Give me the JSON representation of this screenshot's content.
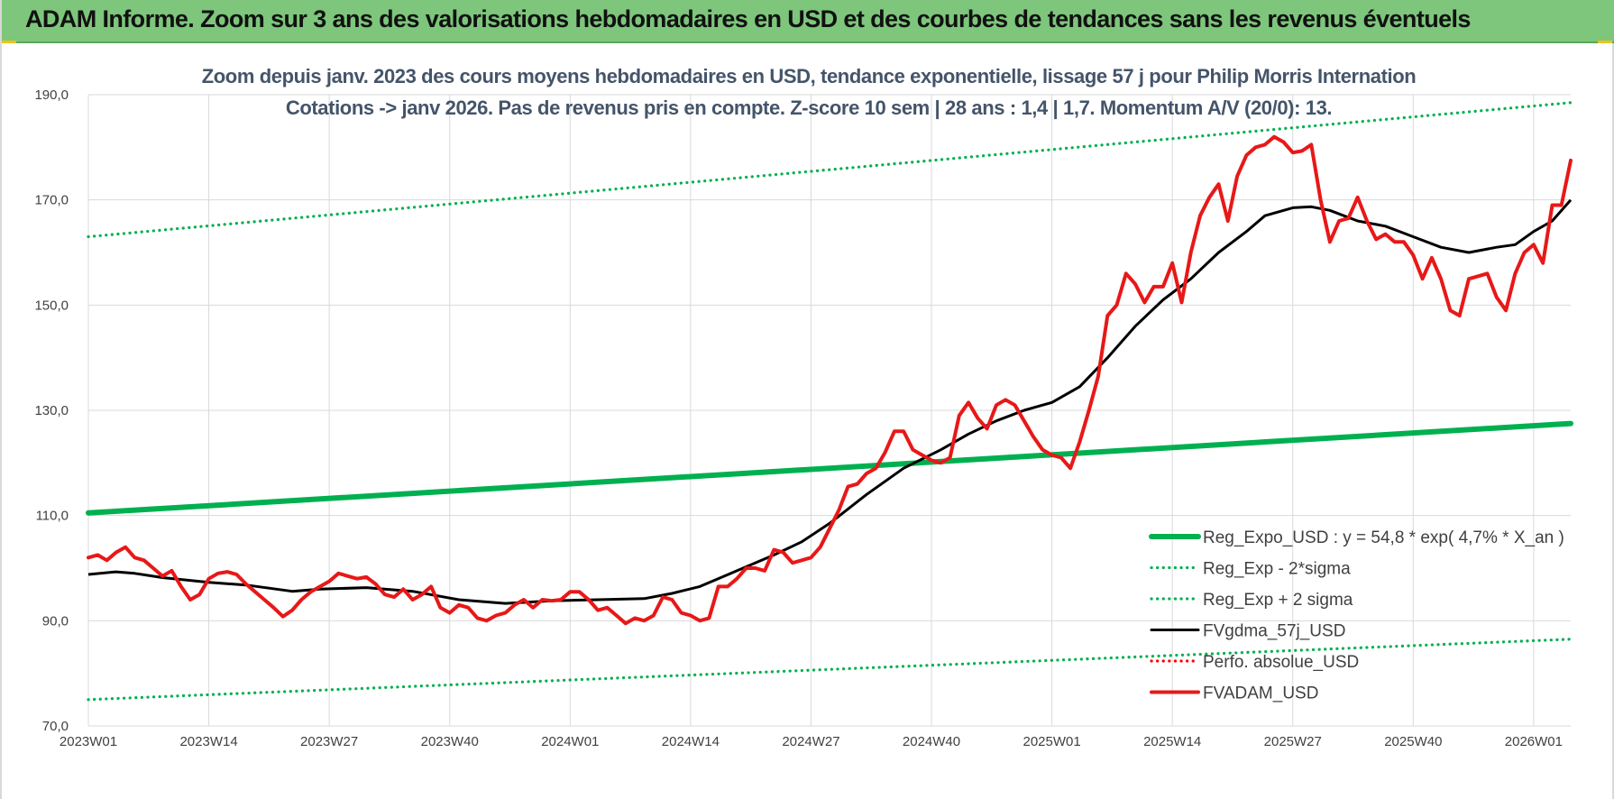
{
  "banner": {
    "title": "ADAM Informe. Zoom sur 3 ans des valorisations hebdomadaires en USD et des courbes de tendances sans les revenus éventuels"
  },
  "colors": {
    "banner_bg": "#7dc67b",
    "trend_green": "#00b050",
    "fvadam_red": "#e81818",
    "fvgdma_black": "#000000",
    "perf_red": "#ff0000",
    "subtitle": "#44546a",
    "grid": "#d9d9d9"
  },
  "chart_data": {
    "type": "line",
    "title_line1": "Zoom depuis janv. 2023 des cours moyens hebdomadaires en USD, tendance exponentielle, lissage 57 j pour Philip Morris Internation",
    "title_line2": "Cotations -> janv 2026. Pas de revenus pris en compte. Z-score 10 sem | 28 ans : 1,4 | 1,7. Momentum A/V (20/0): 13.",
    "ylim": [
      70,
      190
    ],
    "yticks": [
      70,
      90,
      110,
      130,
      150,
      170,
      190
    ],
    "ytick_labels": [
      "70,0",
      "90,0",
      "110,0",
      "130,0",
      "150,0",
      "170,0",
      "190,0"
    ],
    "x_start_label": "2023W01",
    "x_weeks_total": 160,
    "xticks": [
      {
        "week": 0,
        "label": "2023W01"
      },
      {
        "week": 13,
        "label": "2023W14"
      },
      {
        "week": 26,
        "label": "2023W27"
      },
      {
        "week": 39,
        "label": "2023W40"
      },
      {
        "week": 52,
        "label": "2024W01"
      },
      {
        "week": 65,
        "label": "2024W14"
      },
      {
        "week": 78,
        "label": "2024W27"
      },
      {
        "week": 91,
        "label": "2024W40"
      },
      {
        "week": 104,
        "label": "2025W01"
      },
      {
        "week": 117,
        "label": "2025W14"
      },
      {
        "week": 130,
        "label": "2025W27"
      },
      {
        "week": 143,
        "label": "2025W40"
      },
      {
        "week": 156,
        "label": "2026W01"
      }
    ],
    "grid": true,
    "legend_position": "bottom-right",
    "series": [
      {
        "key": "reg_expo",
        "name": "Reg_Expo_USD : y = 54,8 * exp( 4,7% *  X_an )",
        "style": "thick-solid",
        "color": "#00b050",
        "points": [
          [
            0,
            110.5
          ],
          [
            160,
            127.5
          ]
        ]
      },
      {
        "key": "reg_minus",
        "name": "Reg_Exp - 2*sigma",
        "style": "dotted",
        "color": "#00b050",
        "points": [
          [
            0,
            75
          ],
          [
            160,
            86.5
          ]
        ]
      },
      {
        "key": "reg_plus",
        "name": "Reg_Exp + 2 sigma",
        "style": "dotted",
        "color": "#00b050",
        "points": [
          [
            0,
            163
          ],
          [
            160,
            188.5
          ]
        ]
      },
      {
        "key": "fvgdma",
        "name": "FVgdma_57j_USD",
        "style": "solid",
        "color": "#000000",
        "points": [
          [
            0,
            98.8
          ],
          [
            3,
            99.3
          ],
          [
            5,
            99.0
          ],
          [
            8,
            98.2
          ],
          [
            13,
            97.3
          ],
          [
            17,
            96.8
          ],
          [
            22,
            95.6
          ],
          [
            25,
            96.0
          ],
          [
            30,
            96.3
          ],
          [
            35,
            95.6
          ],
          [
            40,
            94.0
          ],
          [
            45,
            93.3
          ],
          [
            50,
            93.8
          ],
          [
            55,
            94.0
          ],
          [
            60,
            94.2
          ],
          [
            63,
            95.2
          ],
          [
            66,
            96.5
          ],
          [
            70,
            99.5
          ],
          [
            74,
            102.5
          ],
          [
            77,
            105.0
          ],
          [
            80,
            108.5
          ],
          [
            84,
            114.0
          ],
          [
            88,
            119.0
          ],
          [
            92,
            122.5
          ],
          [
            95,
            125.5
          ],
          [
            98,
            128.0
          ],
          [
            101,
            130.0
          ],
          [
            104,
            131.5
          ],
          [
            107,
            134.5
          ],
          [
            110,
            140.0
          ],
          [
            113,
            146.0
          ],
          [
            116,
            151.0
          ],
          [
            119,
            155.0
          ],
          [
            122,
            160.0
          ],
          [
            125,
            164.0
          ],
          [
            127,
            167.0
          ],
          [
            130,
            168.5
          ],
          [
            132,
            168.7
          ],
          [
            134,
            168.0
          ],
          [
            137,
            166.0
          ],
          [
            140,
            165.0
          ],
          [
            143,
            163.0
          ],
          [
            146,
            161.0
          ],
          [
            149,
            160.0
          ],
          [
            152,
            161.0
          ],
          [
            154,
            161.5
          ],
          [
            156,
            164.0
          ],
          [
            158,
            166.0
          ],
          [
            160,
            170.0
          ]
        ]
      },
      {
        "key": "perf",
        "name": "Perfo. absolue_USD",
        "style": "dotted",
        "color": "#ff0000",
        "points": []
      },
      {
        "key": "fvadam",
        "name": "FVADAM_USD",
        "style": "thick-solid",
        "color": "#e81818",
        "points": [
          [
            0,
            102.0
          ],
          [
            1,
            102.5
          ],
          [
            2,
            101.5
          ],
          [
            3,
            103.0
          ],
          [
            4,
            104.0
          ],
          [
            5,
            102.0
          ],
          [
            6,
            101.5
          ],
          [
            7,
            100.0
          ],
          [
            8,
            98.5
          ],
          [
            9,
            99.5
          ],
          [
            10,
            96.5
          ],
          [
            11,
            94.0
          ],
          [
            12,
            95.0
          ],
          [
            13,
            98.0
          ],
          [
            14,
            99.0
          ],
          [
            15,
            99.3
          ],
          [
            16,
            98.8
          ],
          [
            17,
            97.0
          ],
          [
            18,
            95.5
          ],
          [
            19,
            94.0
          ],
          [
            20,
            92.5
          ],
          [
            21,
            90.8
          ],
          [
            22,
            92.0
          ],
          [
            23,
            94.0
          ],
          [
            24,
            95.5
          ],
          [
            25,
            96.5
          ],
          [
            26,
            97.5
          ],
          [
            27,
            99.0
          ],
          [
            28,
            98.5
          ],
          [
            29,
            98.0
          ],
          [
            30,
            98.3
          ],
          [
            31,
            97.0
          ],
          [
            32,
            95.0
          ],
          [
            33,
            94.5
          ],
          [
            34,
            96.0
          ],
          [
            35,
            94.0
          ],
          [
            36,
            95.0
          ],
          [
            37,
            96.5
          ],
          [
            38,
            92.5
          ],
          [
            39,
            91.5
          ],
          [
            40,
            93.0
          ],
          [
            41,
            92.5
          ],
          [
            42,
            90.5
          ],
          [
            43,
            90.0
          ],
          [
            44,
            91.0
          ],
          [
            45,
            91.5
          ],
          [
            46,
            93.0
          ],
          [
            47,
            94.0
          ],
          [
            48,
            92.5
          ],
          [
            49,
            94.0
          ],
          [
            50,
            93.8
          ],
          [
            51,
            94.0
          ],
          [
            52,
            95.5
          ],
          [
            53,
            95.5
          ],
          [
            54,
            94.0
          ],
          [
            55,
            92.0
          ],
          [
            56,
            92.5
          ],
          [
            57,
            91.0
          ],
          [
            58,
            89.5
          ],
          [
            59,
            90.5
          ],
          [
            60,
            90.0
          ],
          [
            61,
            91.0
          ],
          [
            62,
            94.5
          ],
          [
            63,
            94.0
          ],
          [
            64,
            91.5
          ],
          [
            65,
            91.0
          ],
          [
            66,
            90.0
          ],
          [
            67,
            90.5
          ],
          [
            68,
            96.5
          ],
          [
            69,
            96.5
          ],
          [
            70,
            98.0
          ],
          [
            71,
            100.0
          ],
          [
            72,
            100.0
          ],
          [
            73,
            99.5
          ],
          [
            74,
            103.5
          ],
          [
            75,
            103.0
          ],
          [
            76,
            101.0
          ],
          [
            77,
            101.5
          ],
          [
            78,
            102.0
          ],
          [
            79,
            104.0
          ],
          [
            80,
            107.5
          ],
          [
            81,
            111.0
          ],
          [
            82,
            115.5
          ],
          [
            83,
            116.0
          ],
          [
            84,
            118.0
          ],
          [
            85,
            119.0
          ],
          [
            86,
            122.0
          ],
          [
            87,
            126.0
          ],
          [
            88,
            126.0
          ],
          [
            89,
            122.5
          ],
          [
            90,
            121.5
          ],
          [
            91,
            120.5
          ],
          [
            92,
            120.0
          ],
          [
            93,
            121.0
          ],
          [
            94,
            129.0
          ],
          [
            95,
            131.5
          ],
          [
            96,
            128.5
          ],
          [
            97,
            126.5
          ],
          [
            98,
            131.0
          ],
          [
            99,
            132.0
          ],
          [
            100,
            131.0
          ],
          [
            101,
            128.0
          ],
          [
            102,
            125.0
          ],
          [
            103,
            122.5
          ],
          [
            104,
            121.5
          ],
          [
            105,
            121.0
          ],
          [
            106,
            119.0
          ],
          [
            107,
            124.0
          ],
          [
            108,
            130.0
          ],
          [
            109,
            136.5
          ],
          [
            110,
            148.0
          ],
          [
            111,
            150.0
          ],
          [
            112,
            156.0
          ],
          [
            113,
            154.0
          ],
          [
            114,
            150.5
          ],
          [
            115,
            153.5
          ],
          [
            116,
            153.5
          ],
          [
            117,
            158.0
          ],
          [
            118,
            150.5
          ],
          [
            119,
            160.0
          ],
          [
            120,
            167.0
          ],
          [
            121,
            170.5
          ],
          [
            122,
            173.0
          ],
          [
            123,
            166.0
          ],
          [
            124,
            174.5
          ],
          [
            125,
            178.5
          ],
          [
            126,
            180.0
          ],
          [
            127,
            180.5
          ],
          [
            128,
            182.0
          ],
          [
            129,
            181.0
          ],
          [
            130,
            179.0
          ],
          [
            131,
            179.3
          ],
          [
            132,
            180.5
          ],
          [
            133,
            170.0
          ],
          [
            134,
            162.0
          ],
          [
            135,
            166.0
          ],
          [
            136,
            166.5
          ],
          [
            137,
            170.5
          ],
          [
            138,
            166.0
          ],
          [
            139,
            162.5
          ],
          [
            140,
            163.5
          ],
          [
            141,
            162.0
          ],
          [
            142,
            162.0
          ],
          [
            143,
            159.5
          ],
          [
            144,
            155.0
          ],
          [
            145,
            159.0
          ],
          [
            146,
            155.0
          ],
          [
            147,
            149.0
          ],
          [
            148,
            148.0
          ],
          [
            149,
            155.0
          ],
          [
            150,
            155.5
          ],
          [
            151,
            156.0
          ],
          [
            152,
            151.5
          ],
          [
            153,
            149.0
          ],
          [
            154,
            156.0
          ],
          [
            155,
            160.0
          ],
          [
            156,
            161.5
          ],
          [
            157,
            158.0
          ],
          [
            158,
            169.0
          ],
          [
            159,
            169.0
          ],
          [
            160,
            177.5
          ]
        ]
      }
    ]
  }
}
